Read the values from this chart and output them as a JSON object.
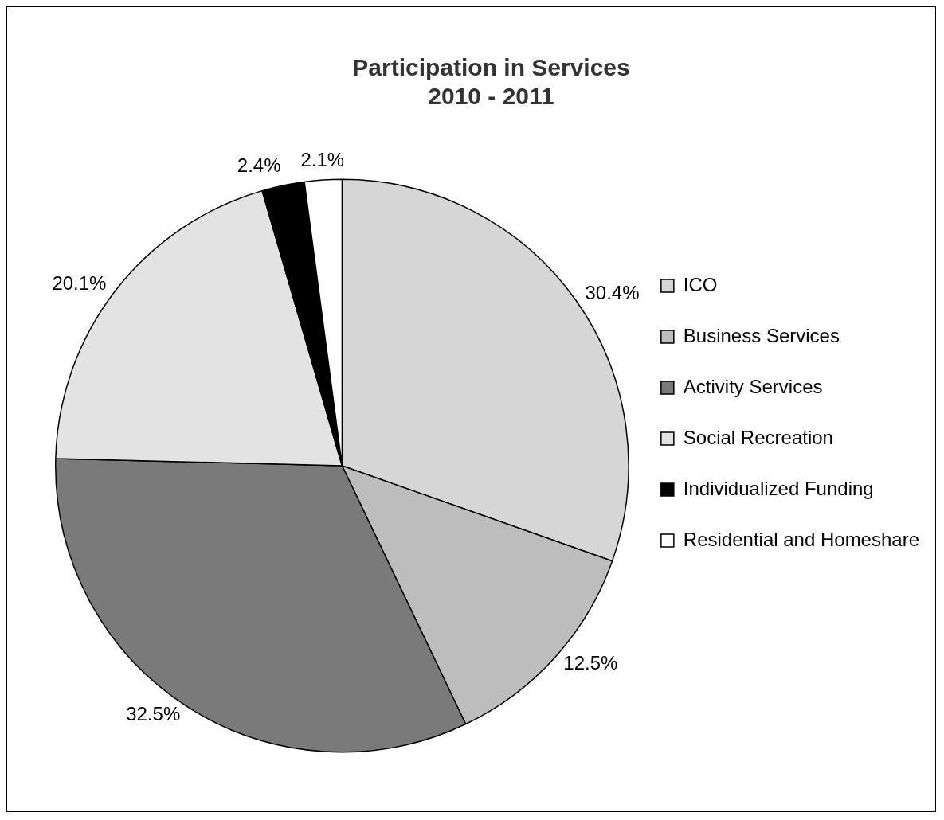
{
  "chart_data": {
    "type": "pie",
    "title": "Participation in Services\n2010 - 2011",
    "categories": [
      "ICO",
      "Business Services",
      "Activity Services",
      "Social Recreation",
      "Individualized Funding",
      "Residential and Homeshare"
    ],
    "values": [
      30.4,
      12.5,
      32.5,
      20.1,
      2.4,
      2.1
    ],
    "colors": [
      "#d6d6d6",
      "#bdbdbd",
      "#7a7a7a",
      "#e3e3e3",
      "#000000",
      "#ffffff"
    ],
    "value_labels": [
      "30.4%",
      "12.5%",
      "32.5%",
      "20.1%",
      "2.4%",
      "2.1%"
    ],
    "legend": "right"
  }
}
